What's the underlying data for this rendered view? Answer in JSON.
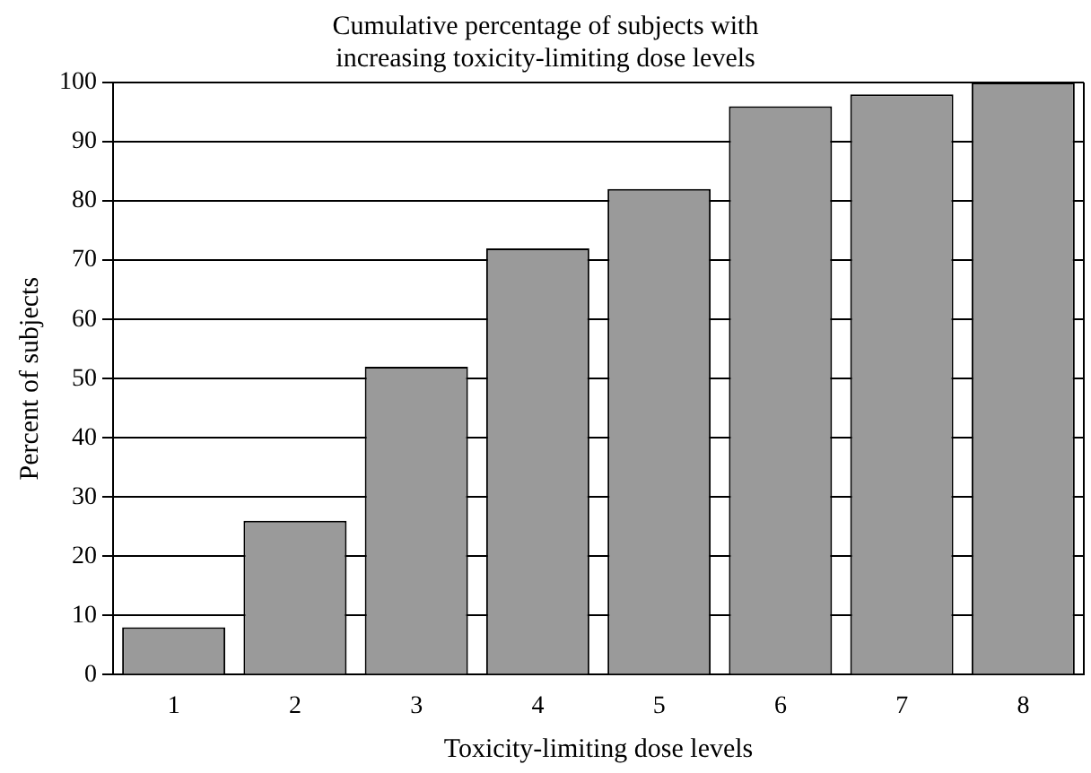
{
  "chart_data": {
    "type": "bar",
    "title": "Cumulative percentage of subjects with increasing toxicity-limiting dose levels",
    "xlabel": "Toxicity-limiting dose levels",
    "ylabel": "Percent of subjects",
    "categories": [
      "1",
      "2",
      "3",
      "4",
      "5",
      "6",
      "7",
      "8"
    ],
    "values": [
      8,
      26,
      52,
      72,
      82,
      96,
      98,
      100
    ],
    "color": "#9a9a9a",
    "ylim": [
      0,
      100
    ],
    "yticks": [
      0,
      10,
      20,
      30,
      40,
      50,
      60,
      70,
      80,
      90,
      100
    ],
    "grid": "y"
  }
}
